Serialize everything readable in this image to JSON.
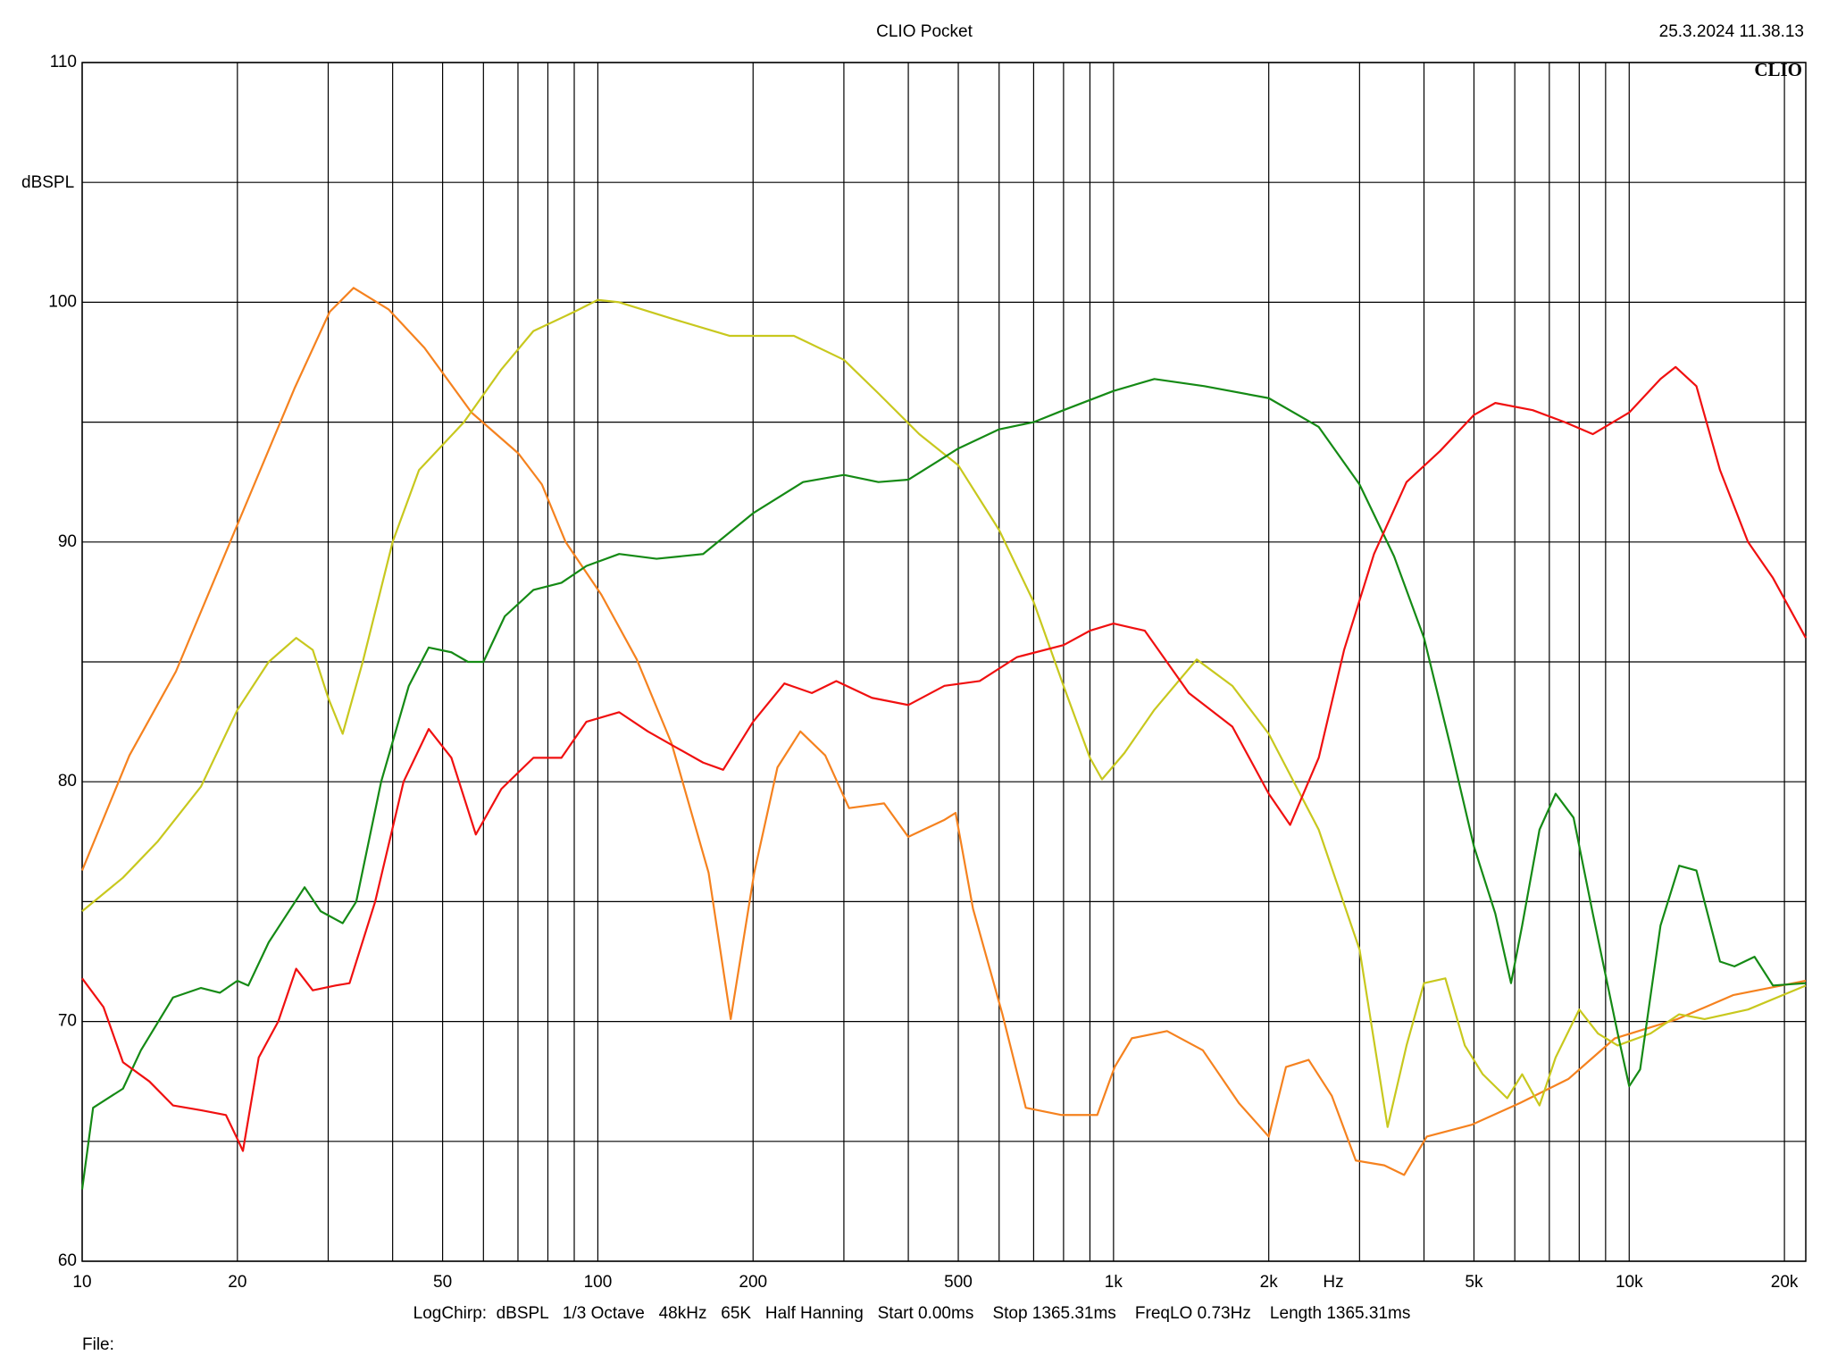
{
  "chart_data": {
    "type": "line",
    "title": "CLIO Pocket",
    "timestamp": "25.3.2024 11.38.13",
    "logo": "CLIO",
    "y_label": "dBSPL",
    "x_label": "Hz",
    "footer": "LogChirp:  dBSPL   1/3 Octave   48kHz   65K   Half Hanning   Start 0.00ms    Stop 1365.31ms    FreqLO 0.73Hz    Length 1365.31ms",
    "file_label": "File:",
    "x_log": true,
    "grid": true,
    "xlim": [
      10,
      22000
    ],
    "ylim": [
      60,
      110
    ],
    "xticks": [
      10,
      20,
      50,
      100,
      200,
      500,
      {
        "value": 1000,
        "label": "1k"
      },
      {
        "value": 2000,
        "label": "2k"
      },
      {
        "value": 5000,
        "label": "5k"
      },
      {
        "value": 10000,
        "label": "10k"
      },
      {
        "value": 20000,
        "label": "20k"
      }
    ],
    "x_minor_ticks": [
      30,
      40,
      60,
      70,
      80,
      90,
      300,
      400,
      600,
      700,
      800,
      900,
      3000,
      4000,
      6000,
      7000,
      8000,
      9000
    ],
    "yticks": [
      60,
      70,
      80,
      90,
      100,
      110
    ],
    "y_minor_ticks": [
      65,
      75,
      85,
      95,
      105
    ],
    "series": [
      {
        "color": "#f5821f",
        "x": [
          10,
          12.35,
          15.2,
          19.8,
          25.8,
          30.2,
          33.6,
          39.3,
          46.1,
          56.9,
          70.1,
          77.9,
          86.6,
          101.6,
          119,
          139,
          164,
          181,
          201,
          223,
          247,
          276,
          307,
          359,
          400,
          469,
          494,
          534,
          609,
          676,
          793,
          930,
          1005,
          1085,
          1270,
          1490,
          1750,
          2000,
          2160,
          2390,
          2650,
          2950,
          3350,
          3660,
          4050,
          4960,
          6140,
          7620,
          9380,
          12400,
          15900,
          22000
        ],
        "values": [
          76.3,
          81.1,
          84.6,
          90.5,
          96.4,
          99.6,
          100.6,
          99.7,
          98.1,
          95.4,
          93.7,
          92.4,
          90.0,
          87.8,
          85.1,
          81.6,
          76.2,
          70.1,
          76.2,
          80.6,
          82.1,
          81.1,
          78.9,
          79.1,
          77.7,
          78.4,
          78.7,
          74.7,
          70.3,
          66.4,
          66.1,
          66.1,
          68.1,
          69.3,
          69.6,
          68.8,
          66.6,
          65.2,
          68.1,
          68.4,
          66.9,
          64.2,
          64.0,
          63.6,
          65.2,
          65.7,
          66.6,
          67.6,
          69.3,
          70.1,
          71.1,
          71.7
        ]
      },
      {
        "color": "#c8c81e",
        "x": [
          10,
          12,
          14,
          17,
          20,
          23,
          26,
          28,
          30,
          32,
          35,
          40,
          45,
          55,
          65,
          75,
          90,
          100,
          110,
          140,
          180,
          240,
          300,
          350,
          420,
          500,
          600,
          700,
          800,
          900,
          950,
          1050,
          1200,
          1450,
          1700,
          2000,
          2500,
          3000,
          3400,
          3700,
          4000,
          4400,
          4800,
          5200,
          5800,
          6200,
          6700,
          7200,
          8000,
          8700,
          9500,
          11000,
          12500,
          14000,
          17000,
          22000
        ],
        "values": [
          74.6,
          76,
          77.5,
          79.8,
          83,
          85,
          86,
          85.5,
          83.5,
          82,
          85,
          90,
          93,
          95,
          97.2,
          98.8,
          99.6,
          100.1,
          100,
          99.3,
          98.6,
          98.6,
          97.6,
          96.2,
          94.5,
          93.2,
          90.5,
          87.5,
          84,
          81,
          80.1,
          81.2,
          83,
          85.1,
          84,
          82,
          78,
          73,
          65.6,
          69,
          71.6,
          71.8,
          69,
          67.8,
          66.8,
          67.8,
          66.5,
          68.5,
          70.5,
          69.5,
          69,
          69.5,
          70.3,
          70.1,
          70.5,
          71.5
        ]
      },
      {
        "color": "#158a15",
        "x": [
          10,
          10.5,
          12,
          13,
          15,
          17,
          18.5,
          20,
          21,
          23,
          25,
          27,
          29,
          32,
          34,
          38,
          43,
          47,
          52,
          56,
          60,
          66,
          75,
          85,
          95,
          110,
          130,
          160,
          200,
          250,
          300,
          350,
          400,
          500,
          600,
          700,
          800,
          1000,
          1200,
          1500,
          2000,
          2500,
          3000,
          3500,
          4000,
          4500,
          5000,
          5500,
          5900,
          6200,
          6700,
          7200,
          7800,
          8500,
          9500,
          10000,
          10500,
          11500,
          12500,
          13500,
          15000,
          16000,
          17500,
          19000,
          22000
        ],
        "values": [
          63,
          66.4,
          67.2,
          68.8,
          71,
          71.4,
          71.2,
          71.7,
          71.5,
          73.3,
          74.5,
          75.6,
          74.6,
          74.1,
          75,
          80,
          84,
          85.6,
          85.4,
          85,
          85,
          86.9,
          88,
          88.3,
          89,
          89.5,
          89.3,
          89.5,
          91.2,
          92.5,
          92.8,
          92.5,
          92.6,
          93.9,
          94.7,
          95,
          95.5,
          96.3,
          96.8,
          96.5,
          96,
          94.8,
          92.4,
          89.4,
          86,
          81.5,
          77.3,
          74.5,
          71.6,
          74,
          78,
          79.5,
          78.5,
          74.5,
          69.5,
          67.3,
          68,
          74,
          76.5,
          76.3,
          72.5,
          72.3,
          72.7,
          71.5,
          71.6
        ]
      },
      {
        "color": "#f01010",
        "x": [
          10,
          11,
          12,
          13.5,
          15,
          17,
          19,
          20,
          20.5,
          22,
          24,
          26,
          28,
          31,
          33,
          37,
          42,
          47,
          52,
          58,
          65,
          75,
          85,
          95,
          110,
          125,
          140,
          160,
          175,
          200,
          230,
          260,
          290,
          340,
          400,
          470,
          550,
          650,
          800,
          900,
          1000,
          1150,
          1400,
          1700,
          2000,
          2200,
          2500,
          2800,
          3200,
          3700,
          4300,
          5000,
          5500,
          6500,
          7500,
          8500,
          10000,
          11500,
          12300,
          13500,
          15000,
          17000,
          19000,
          22000
        ],
        "values": [
          71.8,
          70.6,
          68.3,
          67.5,
          66.5,
          66.3,
          66.1,
          65.1,
          64.6,
          68.5,
          70,
          72.2,
          71.3,
          71.5,
          71.6,
          75,
          80,
          82.2,
          81,
          77.8,
          79.7,
          81,
          81,
          82.5,
          82.9,
          82.1,
          81.5,
          80.8,
          80.5,
          82.5,
          84.1,
          83.7,
          84.2,
          83.5,
          83.2,
          84,
          84.2,
          85.2,
          85.7,
          86.3,
          86.6,
          86.3,
          83.7,
          82.3,
          79.5,
          78.2,
          81,
          85.5,
          89.5,
          92.5,
          93.8,
          95.3,
          95.8,
          95.5,
          95,
          94.5,
          95.4,
          96.8,
          97.3,
          96.5,
          93,
          90,
          88.5,
          86
        ]
      }
    ]
  }
}
